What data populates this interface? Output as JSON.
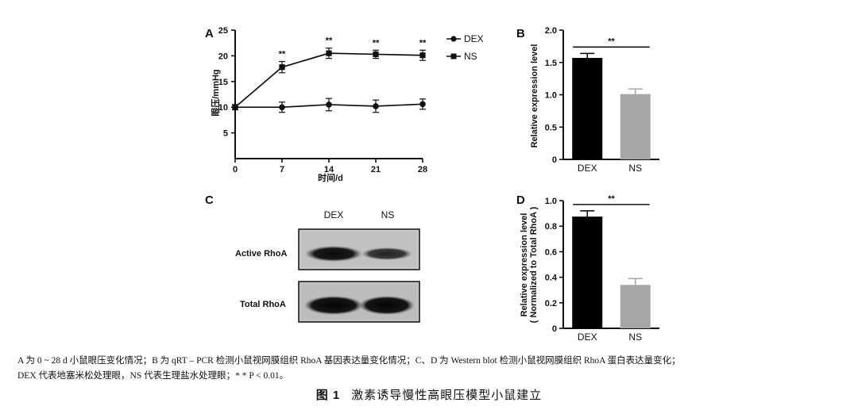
{
  "panels": {
    "A": {
      "letter": "A"
    },
    "B": {
      "letter": "B"
    },
    "C": {
      "letter": "C"
    },
    "D": {
      "letter": "D"
    }
  },
  "chart_data": [
    {
      "panel": "A",
      "type": "line",
      "x": [
        0,
        7,
        14,
        21,
        28
      ],
      "series": [
        {
          "name": "DEX",
          "marker": "circle",
          "values": [
            10,
            10,
            10.5,
            10.2,
            10.6
          ],
          "errors": [
            0.5,
            1.0,
            1.2,
            1.2,
            1.0
          ]
        },
        {
          "name": "NS",
          "marker": "square",
          "values": [
            10,
            17.8,
            20.5,
            20.3,
            20.1
          ],
          "errors": [
            0.5,
            1.1,
            1.0,
            0.8,
            1.0
          ]
        }
      ],
      "significance": [
        "",
        "**",
        "**",
        "**",
        "**"
      ],
      "xlabel": "时间/d",
      "ylabel": "眼压/mmHg",
      "xticks": [
        0,
        7,
        14,
        21,
        28
      ],
      "yticks": [
        5,
        10,
        15,
        20,
        25
      ],
      "ylim": [
        0,
        25
      ],
      "xlim": [
        0,
        28
      ]
    },
    {
      "panel": "B",
      "type": "bar",
      "categories": [
        "DEX",
        "NS"
      ],
      "values": [
        1.57,
        1.01
      ],
      "errors": [
        0.07,
        0.08
      ],
      "colors": [
        "#000000",
        "#a6a6a6"
      ],
      "ylabel": "Relative expression level",
      "yticks": [
        "0",
        "0.5",
        "1.0",
        "1.5",
        "2.0"
      ],
      "ylim": [
        0,
        2.0
      ],
      "significance": "**"
    },
    {
      "panel": "D",
      "type": "bar",
      "categories": [
        "DEX",
        "NS"
      ],
      "values": [
        0.875,
        0.34
      ],
      "errors": [
        0.045,
        0.05
      ],
      "colors": [
        "#000000",
        "#a6a6a6"
      ],
      "ylabel": "Relative expression level",
      "ylabel2": "( Normalized to Total RhoA )",
      "yticks": [
        "0",
        "0.2",
        "0.4",
        "0.6",
        "0.8",
        "1.0"
      ],
      "ylim": [
        0,
        1.0
      ],
      "significance": "**"
    }
  ],
  "blot": {
    "columns": [
      "DEX",
      "NS"
    ],
    "rows": [
      {
        "label": "Active RhoA"
      },
      {
        "label": "Total RhoA"
      }
    ]
  },
  "caption": {
    "line1": "A 为 0 ~ 28 d 小鼠眼压变化情况；B 为 qRT – PCR 检测小鼠视网膜组织 RhoA 基因表达量变化情况；C、D 为 Western blot 检测小鼠视网膜组织 RhoA 蛋白表达量变化；",
    "line2": "DEX 代表地塞米松处理眼，NS 代表生理盐水处理眼；* * P < 0.01。",
    "figure_label": "图 1",
    "figure_title": "激素诱导慢性高眼压模型小鼠建立"
  }
}
